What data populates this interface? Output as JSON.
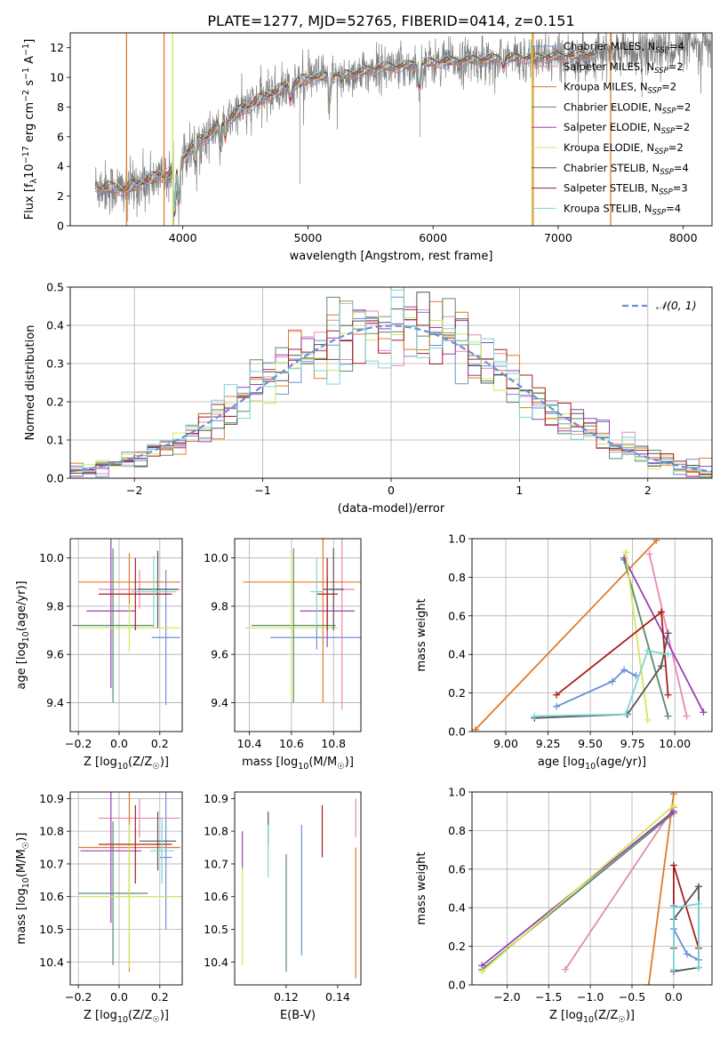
{
  "figure": {
    "title": "PLATE=1277, MJD=52765, FIBERID=0414, z=0.151"
  },
  "colors": {
    "Chabrier MILES": "#6a8fd6",
    "Salpeter MILES": "#e887b8",
    "Kroupa MILES": "#e07b28",
    "Chabrier ELODIE": "#5a8a6a",
    "Salpeter ELODIE": "#9b3fb0",
    "Kroupa ELODIE": "#d4e65a",
    "Chabrier STELIB": "#555555",
    "Salpeter STELIB": "#a81e1e",
    "Kroupa STELIB": "#7ad6d6",
    "data": "#808080",
    "normal": "#6a8fd6"
  },
  "chart_data": [
    {
      "id": "spectrum",
      "type": "line",
      "title": "PLATE=1277, MJD=52765, FIBERID=0414, z=0.151",
      "xlabel": "wavelength [Angstrom, rest frame]",
      "ylabel": "Flux [fλ10⁻¹⁷ erg cm⁻² s⁻¹ A⁻¹]",
      "xlim": [
        3100,
        8230
      ],
      "ylim": [
        0,
        13
      ],
      "xticks": [
        4000,
        5000,
        6000,
        7000,
        8000
      ],
      "yticks": [
        0,
        2,
        4,
        6,
        8,
        10,
        12
      ],
      "grid": false,
      "legend_position": "top-right",
      "legend": [
        {
          "label": "Chabrier MILES, N",
          "sub": "SSP",
          "tail": "=4",
          "color": "#6a8fd6"
        },
        {
          "label": "Salpeter MILES, N",
          "sub": "SSP",
          "tail": "=2",
          "color": "#e887b8"
        },
        {
          "label": "Kroupa MILES, N",
          "sub": "SSP",
          "tail": "=2",
          "color": "#e07b28"
        },
        {
          "label": "Chabrier ELODIE, N",
          "sub": "SSP",
          "tail": "=2",
          "color": "#5a8a6a"
        },
        {
          "label": "Salpeter ELODIE, N",
          "sub": "SSP",
          "tail": "=2",
          "color": "#9b3fb0"
        },
        {
          "label": "Kroupa ELODIE, N",
          "sub": "SSP",
          "tail": "=2",
          "color": "#d4e65a"
        },
        {
          "label": "Chabrier STELIB, N",
          "sub": "SSP",
          "tail": "=4",
          "color": "#555555"
        },
        {
          "label": "Salpeter STELIB, N",
          "sub": "SSP",
          "tail": "=3",
          "color": "#a81e1e"
        },
        {
          "label": "Kroupa STELIB, N",
          "sub": "SSP",
          "tail": "=4",
          "color": "#7ad6d6"
        }
      ],
      "continuum": {
        "x": [
          3300,
          3450,
          3550,
          3700,
          3800,
          3900,
          4000,
          4100,
          4200,
          4300,
          4400,
          4500,
          4600,
          4700,
          4800,
          4900,
          5000,
          5100,
          5200,
          5300,
          5400,
          5500,
          5600,
          5700,
          5800,
          5900,
          6000,
          6200,
          6400,
          6600,
          6800,
          7000,
          7200,
          7400,
          7600,
          7800,
          8000,
          8200
        ],
        "y": [
          2.7,
          2.5,
          2.5,
          3.0,
          3.3,
          3.5,
          4.6,
          5.6,
          6.1,
          6.8,
          7.4,
          8.0,
          8.4,
          8.9,
          9.2,
          9.6,
          9.9,
          10.0,
          10.1,
          10.2,
          10.3,
          10.5,
          10.7,
          10.7,
          10.8,
          10.9,
          11.0,
          11.1,
          11.2,
          11.3,
          11.3,
          11.4,
          11.5,
          11.6,
          11.8,
          11.9,
          12.0,
          12.2
        ]
      },
      "vertical_artifacts": [
        {
          "x": 3550,
          "color": "#e07b28"
        },
        {
          "x": 3850,
          "color": "#e07b28"
        },
        {
          "x": 3920,
          "color": "#d4e65a"
        },
        {
          "x": 6790,
          "color": "#d4e65a"
        },
        {
          "x": 6800,
          "color": "#e07b28"
        },
        {
          "x": 7420,
          "color": "#e07b28"
        }
      ]
    },
    {
      "id": "residuals",
      "type": "line",
      "xlabel": "(data-model)/error",
      "ylabel": "Normed distribution",
      "xlim": [
        -2.5,
        2.5
      ],
      "ylim": [
        0,
        0.5
      ],
      "xticks": [
        -2,
        -1,
        0,
        1,
        2
      ],
      "yticks": [
        0.0,
        0.1,
        0.2,
        0.3,
        0.4,
        0.5
      ],
      "grid": true,
      "legend_position": "top-right",
      "legend": [
        {
          "label": "𝒩(0, 1)",
          "color": "#6a8fd6",
          "style": "dashed"
        }
      ],
      "bin_width": 0.1,
      "bin_start": -2.5
    },
    {
      "id": "age_vs_Z",
      "type": "scatter",
      "xlabel": "Z [log₁₀(Z/Z☉)]",
      "ylabel": "age  [log₁₀(age/yr)]",
      "xlim": [
        -0.24,
        0.31
      ],
      "ylim": [
        9.28,
        10.08
      ],
      "xticks": [
        -0.2,
        0.0,
        0.2
      ],
      "yticks": [
        9.4,
        9.6,
        9.8,
        10.0
      ],
      "grid": true,
      "errorbars": [
        {
          "model": "Chabrier MILES",
          "x": 0.23,
          "xerr": 0.07,
          "y": 9.67,
          "yerr": 0.28
        },
        {
          "model": "Salpeter MILES",
          "x": 0.1,
          "xerr": 0.2,
          "y": 9.87,
          "yerr": 0.08
        },
        {
          "model": "Kroupa MILES",
          "x": 0.05,
          "xerr": 0.25,
          "y": 9.9,
          "yerr": 0.12
        },
        {
          "model": "Chabrier ELODIE",
          "x": -0.03,
          "xerr": 0.2,
          "y": 9.72,
          "yerr": 0.32
        },
        {
          "model": "Salpeter ELODIE",
          "x": -0.04,
          "xerr": 0.12,
          "y": 9.78,
          "yerr": 0.32
        },
        {
          "model": "Kroupa ELODIE",
          "x": 0.05,
          "xerr": 0.25,
          "y": 9.71,
          "yerr": 0.1
        },
        {
          "model": "Chabrier STELIB",
          "x": 0.19,
          "xerr": 0.1,
          "y": 9.87,
          "yerr": 0.16
        },
        {
          "model": "Salpeter STELIB",
          "x": 0.08,
          "xerr": 0.18,
          "y": 9.85,
          "yerr": 0.15
        },
        {
          "model": "Kroupa STELIB",
          "x": 0.17,
          "xerr": 0.11,
          "y": 9.86,
          "yerr": 0.15
        }
      ]
    },
    {
      "id": "age_vs_mass",
      "type": "scatter",
      "xlabel": "mass [log₁₀(M/M☉)]",
      "xlim": [
        10.33,
        10.93
      ],
      "ylim": [
        9.28,
        10.08
      ],
      "xticks": [
        10.4,
        10.6,
        10.8
      ],
      "yticks": [
        9.4,
        9.6,
        9.8,
        10.0
      ],
      "grid": true,
      "errorbars": [
        {
          "model": "Chabrier MILES",
          "x": 10.72,
          "xerr": 0.22,
          "y": 9.67,
          "yerr": 0.05
        },
        {
          "model": "Salpeter MILES",
          "x": 10.84,
          "xerr": 0.06,
          "y": 9.87,
          "yerr": 0.5
        },
        {
          "model": "Kroupa MILES",
          "x": 10.75,
          "xerr": 0.38,
          "y": 9.9,
          "yerr": 0.5
        },
        {
          "model": "Chabrier ELODIE",
          "x": 10.61,
          "xerr": 0.2,
          "y": 9.72,
          "yerr": 0.32
        },
        {
          "model": "Salpeter ELODIE",
          "x": 10.77,
          "xerr": 0.13,
          "y": 9.78,
          "yerr": 0.15
        },
        {
          "model": "Kroupa ELODIE",
          "x": 10.6,
          "xerr": 0.22,
          "y": 9.71,
          "yerr": 0.3
        },
        {
          "model": "Chabrier STELIB",
          "x": 10.8,
          "xerr": 0.05,
          "y": 9.87,
          "yerr": 0.17
        },
        {
          "model": "Salpeter STELIB",
          "x": 10.77,
          "xerr": 0.05,
          "y": 9.85,
          "yerr": 0.15
        },
        {
          "model": "Kroupa STELIB",
          "x": 10.72,
          "xerr": 0.03,
          "y": 9.86,
          "yerr": 0.14
        }
      ]
    },
    {
      "id": "weight_vs_age",
      "type": "line",
      "xlabel": "age  [log₁₀(age/yr)]",
      "ylabel": "mass weight",
      "xlim": [
        8.8,
        10.22
      ],
      "ylim": [
        0,
        1
      ],
      "xticks": [
        9.0,
        9.25,
        9.5,
        9.75,
        10.0
      ],
      "yticks": [
        0.0,
        0.2,
        0.4,
        0.6,
        0.8,
        1.0
      ],
      "grid": true,
      "series": [
        {
          "model": "Chabrier MILES",
          "x": [
            9.3,
            9.63,
            9.7,
            9.77
          ],
          "y": [
            0.13,
            0.26,
            0.32,
            0.29
          ]
        },
        {
          "model": "Salpeter MILES",
          "x": [
            9.85,
            10.07
          ],
          "y": [
            0.92,
            0.08
          ]
        },
        {
          "model": "Kroupa MILES",
          "x": [
            8.82,
            9.89
          ],
          "y": [
            0.01,
            0.99
          ]
        },
        {
          "model": "Chabrier ELODIE",
          "x": [
            9.7,
            9.96
          ],
          "y": [
            0.89,
            0.08
          ]
        },
        {
          "model": "Salpeter ELODIE",
          "x": [
            9.7,
            10.17
          ],
          "y": [
            0.9,
            0.1
          ]
        },
        {
          "model": "Kroupa ELODIE",
          "x": [
            9.71,
            9.84
          ],
          "y": [
            0.93,
            0.06
          ]
        },
        {
          "model": "Chabrier STELIB",
          "x": [
            9.17,
            9.72,
            9.92,
            9.96
          ],
          "y": [
            0.07,
            0.09,
            0.34,
            0.51
          ]
        },
        {
          "model": "Salpeter STELIB",
          "x": [
            9.3,
            9.92,
            9.96
          ],
          "y": [
            0.19,
            0.62,
            0.19
          ]
        },
        {
          "model": "Kroupa STELIB",
          "x": [
            9.17,
            9.71,
            9.84,
            9.96
          ],
          "y": [
            0.08,
            0.09,
            0.42,
            0.4
          ]
        }
      ]
    },
    {
      "id": "mass_vs_Z",
      "type": "scatter",
      "xlabel": "Z [log₁₀(Z/Z☉)]",
      "ylabel": "mass [log₁₀(M/M☉)]",
      "xlim": [
        -0.24,
        0.31
      ],
      "ylim": [
        10.33,
        10.92
      ],
      "xticks": [
        -0.2,
        0.0,
        0.2
      ],
      "yticks": [
        10.4,
        10.5,
        10.6,
        10.7,
        10.8,
        10.9
      ],
      "grid": true,
      "errorbars": [
        {
          "model": "Chabrier MILES",
          "x": 0.23,
          "xerr": 0.03,
          "y": 10.72,
          "yerr": 0.22
        },
        {
          "model": "Salpeter MILES",
          "x": 0.1,
          "xerr": 0.2,
          "y": 10.84,
          "yerr": 0.06
        },
        {
          "model": "Kroupa MILES",
          "x": 0.05,
          "xerr": 0.25,
          "y": 10.75,
          "yerr": 0.38
        },
        {
          "model": "Chabrier ELODIE",
          "x": -0.03,
          "xerr": 0.17,
          "y": 10.61,
          "yerr": 0.22
        },
        {
          "model": "Salpeter ELODIE",
          "x": -0.04,
          "xerr": 0.15,
          "y": 10.74,
          "yerr": 0.22
        },
        {
          "model": "Kroupa ELODIE",
          "x": 0.05,
          "xerr": 0.25,
          "y": 10.6,
          "yerr": 0.22
        },
        {
          "model": "Chabrier STELIB",
          "x": 0.19,
          "xerr": 0.09,
          "y": 10.77,
          "yerr": 0.09
        },
        {
          "model": "Salpeter STELIB",
          "x": 0.08,
          "xerr": 0.18,
          "y": 10.76,
          "yerr": 0.12
        },
        {
          "model": "Kroupa STELIB",
          "x": 0.21,
          "xerr": 0.06,
          "y": 10.74,
          "yerr": 0.1
        }
      ]
    },
    {
      "id": "mass_vs_ebv",
      "type": "scatter",
      "xlabel": "E(B-V)",
      "xlim": [
        0.1,
        0.149
      ],
      "ylim": [
        10.33,
        10.92
      ],
      "xticks": [
        0.12,
        0.14
      ],
      "yticks": [
        10.4,
        10.5,
        10.6,
        10.7,
        10.8,
        10.9
      ],
      "grid": false,
      "errorbars": [
        {
          "model": "Chabrier MILES",
          "x": 0.126,
          "y": 10.62,
          "yerr": 0.2
        },
        {
          "model": "Salpeter MILES",
          "x": 0.147,
          "y": 10.84,
          "yerr": 0.06
        },
        {
          "model": "Kroupa MILES",
          "x": 0.147,
          "y": 10.55,
          "yerr": 0.2
        },
        {
          "model": "Chabrier ELODIE",
          "x": 0.12,
          "y": 10.55,
          "yerr": 0.18
        },
        {
          "model": "Salpeter ELODIE",
          "x": 0.103,
          "y": 10.74,
          "yerr": 0.06
        },
        {
          "model": "Kroupa ELODIE",
          "x": 0.103,
          "y": 10.54,
          "yerr": 0.15
        },
        {
          "model": "Chabrier STELIB",
          "x": 0.113,
          "y": 10.81,
          "yerr": 0.05
        },
        {
          "model": "Salpeter STELIB",
          "x": 0.134,
          "y": 10.8,
          "yerr": 0.08
        },
        {
          "model": "Kroupa STELIB",
          "x": 0.113,
          "y": 10.74,
          "yerr": 0.08
        }
      ]
    },
    {
      "id": "weight_vs_Z",
      "type": "line",
      "xlabel": "Z [log₁₀(Z/Z☉)]",
      "ylabel": "mass weight",
      "xlim": [
        -2.42,
        0.46
      ],
      "ylim": [
        0,
        1
      ],
      "xticks": [
        -2.0,
        -1.5,
        -1.0,
        -0.5,
        0.0
      ],
      "yticks": [
        0.0,
        0.2,
        0.4,
        0.6,
        0.8,
        1.0
      ],
      "grid": true,
      "series": [
        {
          "model": "Chabrier MILES",
          "x": [
            0.0,
            0.0,
            0.16,
            0.3
          ],
          "y": [
            0.41,
            0.29,
            0.16,
            0.13
          ]
        },
        {
          "model": "Salpeter MILES",
          "x": [
            -1.3,
            0.0
          ],
          "y": [
            0.08,
            0.92
          ]
        },
        {
          "model": "Kroupa MILES",
          "x": [
            -0.3,
            0.0
          ],
          "y": [
            0.0,
            0.99
          ]
        },
        {
          "model": "Chabrier ELODIE",
          "x": [
            -2.3,
            0.0
          ],
          "y": [
            0.08,
            0.89
          ]
        },
        {
          "model": "Salpeter ELODIE",
          "x": [
            -2.3,
            0.0
          ],
          "y": [
            0.1,
            0.9
          ]
        },
        {
          "model": "Kroupa ELODIE",
          "x": [
            -2.3,
            0.0
          ],
          "y": [
            0.07,
            0.93
          ]
        },
        {
          "model": "Chabrier STELIB",
          "x": [
            0.0,
            0.3,
            0.3,
            0.0
          ],
          "y": [
            0.34,
            0.51,
            0.09,
            0.07
          ]
        },
        {
          "model": "Salpeter STELIB",
          "x": [
            0.0,
            0.0,
            0.3
          ],
          "y": [
            0.19,
            0.62,
            0.19
          ]
        },
        {
          "model": "Kroupa STELIB",
          "x": [
            0.0,
            0.0,
            0.3,
            0.3
          ],
          "y": [
            0.08,
            0.4,
            0.42,
            0.09
          ]
        }
      ]
    }
  ]
}
